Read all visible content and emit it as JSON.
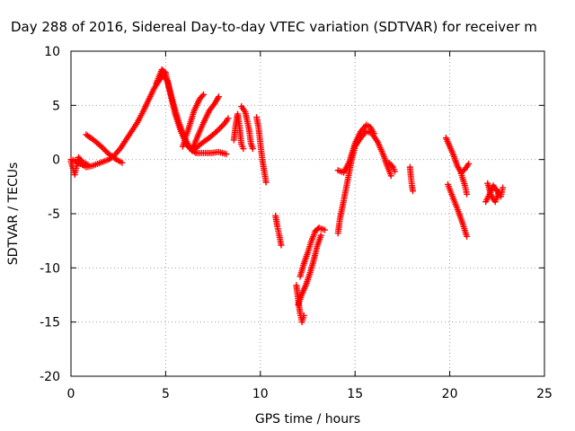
{
  "chart_data": {
    "type": "scatter",
    "title": "Day 288 of 2016, Sidereal Day-to-day VTEC variation (SDTVAR) for receiver m",
    "xlabel": "GPS time / hours",
    "ylabel": "SDTVAR / TECUs",
    "xlim": [
      0,
      25
    ],
    "ylim": [
      -20,
      10
    ],
    "x_ticks": [
      0,
      5,
      10,
      15,
      20,
      25
    ],
    "y_ticks": [
      10,
      5,
      0,
      -5,
      -10,
      -15,
      -20
    ],
    "grid": true,
    "marker": "plus",
    "color": "#ff0000",
    "series": [
      {
        "values": [
          [
            0.0,
            0.0
          ],
          [
            0.2,
            -0.1
          ],
          [
            0.5,
            -0.4
          ],
          [
            0.8,
            -0.7
          ],
          [
            1.1,
            -0.6
          ],
          [
            1.4,
            -0.4
          ],
          [
            1.7,
            -0.2
          ],
          [
            2.0,
            0.0
          ],
          [
            2.3,
            0.4
          ],
          [
            2.6,
            1.0
          ],
          [
            2.9,
            1.8
          ],
          [
            3.2,
            2.6
          ],
          [
            3.5,
            3.4
          ],
          [
            3.8,
            4.4
          ],
          [
            4.1,
            5.5
          ],
          [
            4.4,
            6.6
          ],
          [
            4.7,
            7.4
          ],
          [
            4.9,
            7.8
          ],
          [
            5.1,
            7.2
          ],
          [
            5.4,
            5.2
          ],
          [
            5.7,
            3.4
          ],
          [
            6.0,
            2.0
          ],
          [
            6.3,
            1.0
          ],
          [
            6.6,
            0.6
          ],
          [
            7.0,
            0.6
          ],
          [
            7.4,
            0.6
          ],
          [
            7.8,
            0.7
          ],
          [
            8.2,
            0.5
          ]
        ]
      },
      {
        "values": [
          [
            0.0,
            -0.2
          ],
          [
            0.1,
            -0.8
          ],
          [
            0.2,
            -1.4
          ],
          [
            0.3,
            -0.6
          ],
          [
            0.4,
            0.2
          ],
          [
            0.6,
            -0.2
          ],
          [
            0.9,
            -0.5
          ]
        ]
      },
      {
        "values": [
          [
            0.8,
            2.3
          ],
          [
            1.2,
            1.8
          ],
          [
            1.6,
            1.2
          ],
          [
            2.0,
            0.5
          ],
          [
            2.4,
            0.0
          ],
          [
            2.7,
            -0.3
          ]
        ]
      },
      {
        "values": [
          [
            4.5,
            7.0
          ],
          [
            4.8,
            8.3
          ],
          [
            5.0,
            8.0
          ],
          [
            5.2,
            6.4
          ],
          [
            5.5,
            4.2
          ],
          [
            5.8,
            2.6
          ],
          [
            6.1,
            1.4
          ],
          [
            6.4,
            0.8
          ]
        ]
      },
      {
        "values": [
          [
            5.9,
            1.2
          ],
          [
            6.2,
            2.8
          ],
          [
            6.5,
            4.5
          ],
          [
            6.8,
            5.6
          ],
          [
            7.0,
            6.0
          ]
        ]
      },
      {
        "values": [
          [
            6.4,
            0.9
          ],
          [
            6.7,
            2.2
          ],
          [
            7.0,
            3.4
          ],
          [
            7.3,
            4.5
          ],
          [
            7.6,
            5.2
          ],
          [
            7.8,
            5.8
          ]
        ]
      },
      {
        "values": [
          [
            6.5,
            0.9
          ],
          [
            6.9,
            1.5
          ],
          [
            7.3,
            2.0
          ],
          [
            7.7,
            2.6
          ],
          [
            8.1,
            3.3
          ],
          [
            8.3,
            3.8
          ]
        ]
      },
      {
        "values": [
          [
            8.6,
            1.8
          ],
          [
            8.7,
            3.2
          ],
          [
            8.8,
            4.2
          ],
          [
            8.9,
            3.0
          ],
          [
            9.0,
            1.4
          ],
          [
            9.1,
            1.0
          ]
        ]
      },
      {
        "values": [
          [
            9.0,
            4.9
          ],
          [
            9.2,
            4.4
          ],
          [
            9.4,
            2.8
          ],
          [
            9.5,
            1.5
          ],
          [
            9.6,
            1.0
          ]
        ]
      },
      {
        "values": [
          [
            9.8,
            3.9
          ],
          [
            9.9,
            3.0
          ],
          [
            10.0,
            1.5
          ],
          [
            10.1,
            0.0
          ],
          [
            10.2,
            -1.0
          ],
          [
            10.3,
            -2.1
          ]
        ]
      },
      {
        "values": [
          [
            10.8,
            -5.2
          ],
          [
            10.9,
            -6.2
          ],
          [
            11.0,
            -7.0
          ],
          [
            11.1,
            -7.9
          ]
        ]
      },
      {
        "values": [
          [
            11.9,
            -11.6
          ],
          [
            12.0,
            -13.0
          ],
          [
            12.1,
            -14.2
          ],
          [
            12.2,
            -15.0
          ],
          [
            12.3,
            -14.4
          ]
        ]
      },
      {
        "values": [
          [
            12.0,
            -13.4
          ],
          [
            12.2,
            -12.4
          ],
          [
            12.4,
            -11.6
          ],
          [
            12.6,
            -10.6
          ],
          [
            12.8,
            -9.4
          ],
          [
            13.0,
            -8.0
          ],
          [
            13.2,
            -7.0
          ]
        ]
      },
      {
        "values": [
          [
            12.1,
            -10.8
          ],
          [
            12.3,
            -9.6
          ],
          [
            12.5,
            -8.6
          ],
          [
            12.7,
            -7.5
          ],
          [
            12.9,
            -6.6
          ],
          [
            13.1,
            -6.3
          ],
          [
            13.4,
            -6.5
          ]
        ]
      },
      {
        "values": [
          [
            14.1,
            -6.8
          ],
          [
            14.2,
            -5.5
          ],
          [
            14.4,
            -3.8
          ],
          [
            14.6,
            -2.0
          ],
          [
            14.8,
            -0.2
          ],
          [
            15.0,
            1.2
          ],
          [
            15.3,
            2.0
          ],
          [
            15.6,
            2.6
          ],
          [
            15.9,
            2.4
          ],
          [
            16.2,
            1.6
          ],
          [
            16.5,
            0.4
          ],
          [
            16.7,
            -0.6
          ],
          [
            16.9,
            -1.5
          ]
        ]
      },
      {
        "values": [
          [
            14.1,
            -1.0
          ],
          [
            14.4,
            -1.2
          ],
          [
            14.7,
            -0.2
          ],
          [
            15.0,
            1.5
          ],
          [
            15.3,
            2.6
          ],
          [
            15.6,
            3.2
          ],
          [
            15.8,
            3.0
          ],
          [
            16.0,
            2.4
          ]
        ]
      },
      {
        "values": [
          [
            16.8,
            -0.3
          ],
          [
            17.0,
            -0.7
          ],
          [
            17.1,
            -1.1
          ]
        ]
      },
      {
        "values": [
          [
            17.9,
            -0.7
          ],
          [
            17.95,
            -1.6
          ],
          [
            18.0,
            -2.4
          ],
          [
            18.05,
            -2.9
          ]
        ]
      },
      {
        "values": [
          [
            19.8,
            2.0
          ],
          [
            20.0,
            1.2
          ],
          [
            20.2,
            0.4
          ],
          [
            20.4,
            -0.6
          ],
          [
            20.6,
            -1.2
          ],
          [
            20.8,
            -0.9
          ],
          [
            21.0,
            -0.4
          ]
        ]
      },
      {
        "values": [
          [
            19.9,
            -2.3
          ],
          [
            20.1,
            -3.2
          ],
          [
            20.3,
            -4.1
          ],
          [
            20.5,
            -5.0
          ],
          [
            20.7,
            -6.0
          ],
          [
            20.9,
            -7.1
          ]
        ]
      },
      {
        "values": [
          [
            20.6,
            -1.3
          ],
          [
            20.8,
            -2.4
          ],
          [
            20.9,
            -3.2
          ]
        ]
      },
      {
        "values": [
          [
            21.9,
            -3.9
          ],
          [
            22.1,
            -3.2
          ],
          [
            22.3,
            -2.4
          ],
          [
            22.5,
            -2.9
          ],
          [
            22.7,
            -3.4
          ],
          [
            22.8,
            -2.6
          ]
        ]
      },
      {
        "values": [
          [
            22.0,
            -2.2
          ],
          [
            22.2,
            -3.4
          ],
          [
            22.4,
            -3.9
          ],
          [
            22.6,
            -3.0
          ]
        ]
      }
    ]
  }
}
